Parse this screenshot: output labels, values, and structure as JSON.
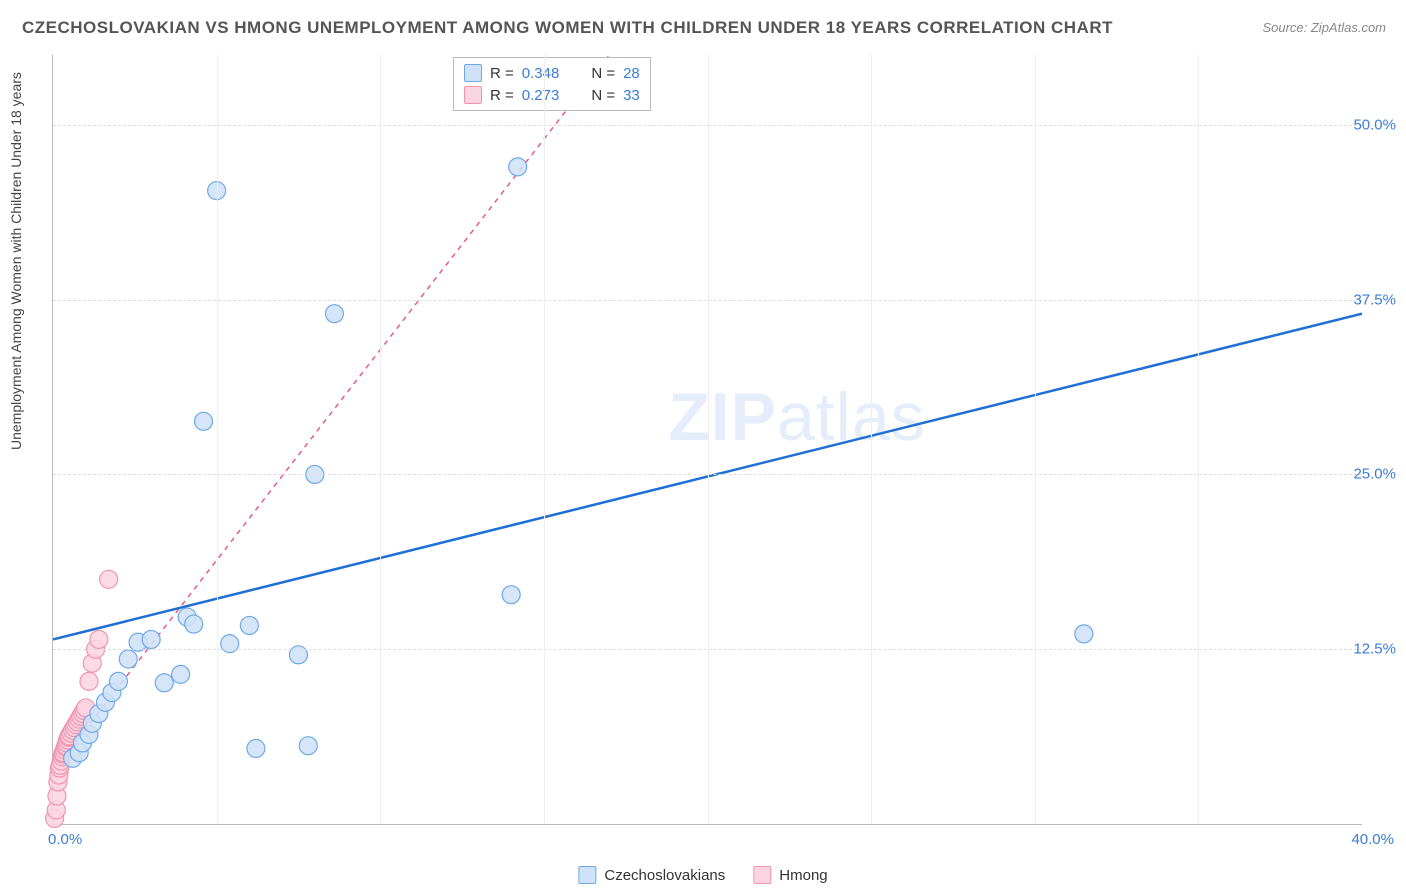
{
  "title": "CZECHOSLOVAKIAN VS HMONG UNEMPLOYMENT AMONG WOMEN WITH CHILDREN UNDER 18 YEARS CORRELATION CHART",
  "source": "Source: ZipAtlas.com",
  "ylabel": "Unemployment Among Women with Children Under 18 years",
  "watermark_a": "ZIP",
  "watermark_b": "atlas",
  "chart": {
    "type": "scatter",
    "xlim": [
      0,
      40
    ],
    "ylim": [
      0,
      55
    ],
    "x_ticks": [
      0,
      40
    ],
    "x_tick_labels": [
      "0.0%",
      "40.0%"
    ],
    "y_ticks": [
      12.5,
      25,
      37.5,
      50
    ],
    "y_tick_labels": [
      "12.5%",
      "25.0%",
      "37.5%",
      "50.0%"
    ],
    "x_grid": [
      5,
      10,
      15,
      20,
      25,
      30,
      35
    ],
    "background_color": "#ffffff",
    "grid_color": "#dddddd",
    "axis_color": "#bbbbbb",
    "series": [
      {
        "name": "Czechoslovakians",
        "marker_fill": "#cfe2f7",
        "marker_stroke": "#6fa8e8",
        "marker_opacity": 0.85,
        "marker_radius": 9,
        "line_color": "#1f6fd4",
        "line_dash": "none",
        "line_width": 2.5,
        "trend": {
          "x1": 0,
          "y1": 13.2,
          "x2": 40,
          "y2": 36.5
        },
        "R": "0.348",
        "N": "28",
        "points": [
          [
            0.6,
            4.7
          ],
          [
            0.8,
            5.1
          ],
          [
            0.9,
            5.8
          ],
          [
            1.1,
            6.4
          ],
          [
            1.2,
            7.2
          ],
          [
            1.4,
            7.9
          ],
          [
            1.6,
            8.7
          ],
          [
            1.8,
            9.4
          ],
          [
            2.0,
            10.2
          ],
          [
            2.3,
            11.8
          ],
          [
            2.6,
            13.0
          ],
          [
            3.0,
            13.2
          ],
          [
            3.4,
            10.1
          ],
          [
            3.9,
            10.7
          ],
          [
            4.1,
            14.8
          ],
          [
            4.3,
            14.3
          ],
          [
            4.6,
            28.8
          ],
          [
            5.0,
            45.3
          ],
          [
            5.4,
            12.9
          ],
          [
            6.0,
            14.2
          ],
          [
            6.2,
            5.4
          ],
          [
            7.5,
            12.1
          ],
          [
            7.8,
            5.6
          ],
          [
            8.0,
            25.0
          ],
          [
            8.6,
            36.5
          ],
          [
            14.0,
            16.4
          ],
          [
            14.2,
            47.0
          ],
          [
            31.5,
            13.6
          ]
        ]
      },
      {
        "name": "Hmong",
        "marker_fill": "#fbd5e0",
        "marker_stroke": "#f193ae",
        "marker_opacity": 0.85,
        "marker_radius": 9,
        "line_color": "#e75a8a",
        "line_dash": "5,5",
        "line_width": 1.5,
        "trend": {
          "x1": 0,
          "y1": 3.8,
          "x2": 17,
          "y2": 55
        },
        "R": "0.273",
        "N": "33",
        "points": [
          [
            0.05,
            0.4
          ],
          [
            0.1,
            1.0
          ],
          [
            0.12,
            2.0
          ],
          [
            0.15,
            3.0
          ],
          [
            0.18,
            3.5
          ],
          [
            0.2,
            4.0
          ],
          [
            0.22,
            4.2
          ],
          [
            0.25,
            4.5
          ],
          [
            0.28,
            4.8
          ],
          [
            0.3,
            5.0
          ],
          [
            0.32,
            5.1
          ],
          [
            0.35,
            5.3
          ],
          [
            0.38,
            5.5
          ],
          [
            0.4,
            5.6
          ],
          [
            0.42,
            5.8
          ],
          [
            0.45,
            6.0
          ],
          [
            0.48,
            6.2
          ],
          [
            0.5,
            6.3
          ],
          [
            0.55,
            6.5
          ],
          [
            0.6,
            6.7
          ],
          [
            0.65,
            6.9
          ],
          [
            0.7,
            7.1
          ],
          [
            0.75,
            7.3
          ],
          [
            0.8,
            7.5
          ],
          [
            0.85,
            7.7
          ],
          [
            0.9,
            7.9
          ],
          [
            0.95,
            8.1
          ],
          [
            1.0,
            8.3
          ],
          [
            1.1,
            10.2
          ],
          [
            1.2,
            11.5
          ],
          [
            1.3,
            12.5
          ],
          [
            1.4,
            13.2
          ],
          [
            1.7,
            17.5
          ]
        ]
      }
    ]
  },
  "stat_labels": {
    "R": "R =",
    "N": "N ="
  },
  "legend_labels": {
    "s1": "Czechoslovakians",
    "s2": "Hmong"
  }
}
